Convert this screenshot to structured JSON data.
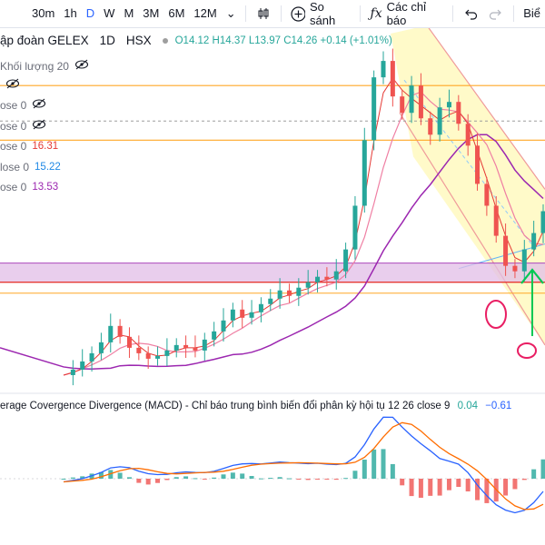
{
  "toolbar": {
    "timeframes": [
      "30m",
      "1h",
      "D",
      "W",
      "M",
      "3M",
      "6M",
      "12M"
    ],
    "active_timeframe": "D",
    "compare_label": "So sánh",
    "indicators_label": "Các chỉ báo",
    "right_label": "Biể"
  },
  "legend": {
    "symbol": "ập đoàn GELEX",
    "interval": "1D",
    "exchange": "HSX",
    "open": "O14.12",
    "high": "H14.37",
    "low": "L13.97",
    "close": "C14.26",
    "change": "+0.14 (+1.01%)",
    "volume_label": "Khối lượng 20",
    "ma_rows": [
      {
        "label": "",
        "value": "",
        "hidden": true
      },
      {
        "label": "ose 0",
        "value": "",
        "hidden": true
      },
      {
        "label": "ose 0",
        "value": "",
        "hidden": true
      },
      {
        "label": "ose 0",
        "value": "16.31",
        "color": "#e53935"
      },
      {
        "label": "lose 0",
        "value": "15.22",
        "color": "#1e88e5"
      },
      {
        "label": "ose 0",
        "value": "13.53",
        "color": "#9c27b0"
      }
    ]
  },
  "macd_legend": {
    "title": "erage Covergence Divergence (MACD) - Chỉ báo trung bình biến đổi phân kỳ hội tụ 12 26 close 9",
    "v1": "0.04",
    "v2": "−0.61",
    "v1_color": "#26a69a",
    "v2_color": "#2962ff"
  },
  "colors": {
    "up": "#26a69a",
    "down": "#ef5350",
    "ma_red": "#e53935",
    "ma_pink": "#ef7fa3",
    "ma_purple": "#9c27b0",
    "hline": "#ffa726",
    "zone_fill": "#e1bee7",
    "zone_edge": "#e53935",
    "channel": "#ef9a9a",
    "channel_fill": "#fff59d",
    "macd_line": "#2962ff",
    "signal_line": "#ff6d00"
  },
  "chart_data": {
    "type": "line",
    "title": "ập đoàn GELEX 1D HSX",
    "ohlc_last": {
      "open": 14.12,
      "high": 14.37,
      "low": 13.97,
      "close": 14.26,
      "change": 0.14,
      "change_pct": 1.01
    },
    "ylim": [
      6.6,
      19.6
    ],
    "price_close_approx": [
      7.0,
      7.2,
      7.5,
      7.8,
      8.2,
      8.8,
      8.4,
      8.0,
      7.8,
      7.6,
      7.7,
      7.9,
      8.1,
      8.0,
      7.9,
      8.3,
      8.6,
      9.0,
      9.4,
      9.1,
      9.3,
      9.6,
      9.8,
      10.1,
      9.9,
      10.2,
      10.4,
      10.6,
      10.5,
      10.8,
      11.6,
      13.2,
      15.6,
      17.9,
      18.5,
      17.2,
      16.6,
      17.6,
      16.4,
      15.8,
      16.8,
      17.0,
      16.2,
      15.4,
      14.0,
      13.2,
      12.1,
      11.0,
      10.8,
      11.6,
      12.2,
      13.0
    ],
    "ma_lines": [
      {
        "name": "MA red",
        "last": 16.31
      },
      {
        "name": "MA blue",
        "last": 15.22
      },
      {
        "name": "MA purple",
        "last": 13.53
      }
    ],
    "horizontal_levels": [
      17.6,
      15.6,
      10.0
    ],
    "zone": [
      10.4,
      11.1
    ],
    "macd_last": {
      "macd": 0.04,
      "signal": -0.61
    }
  }
}
